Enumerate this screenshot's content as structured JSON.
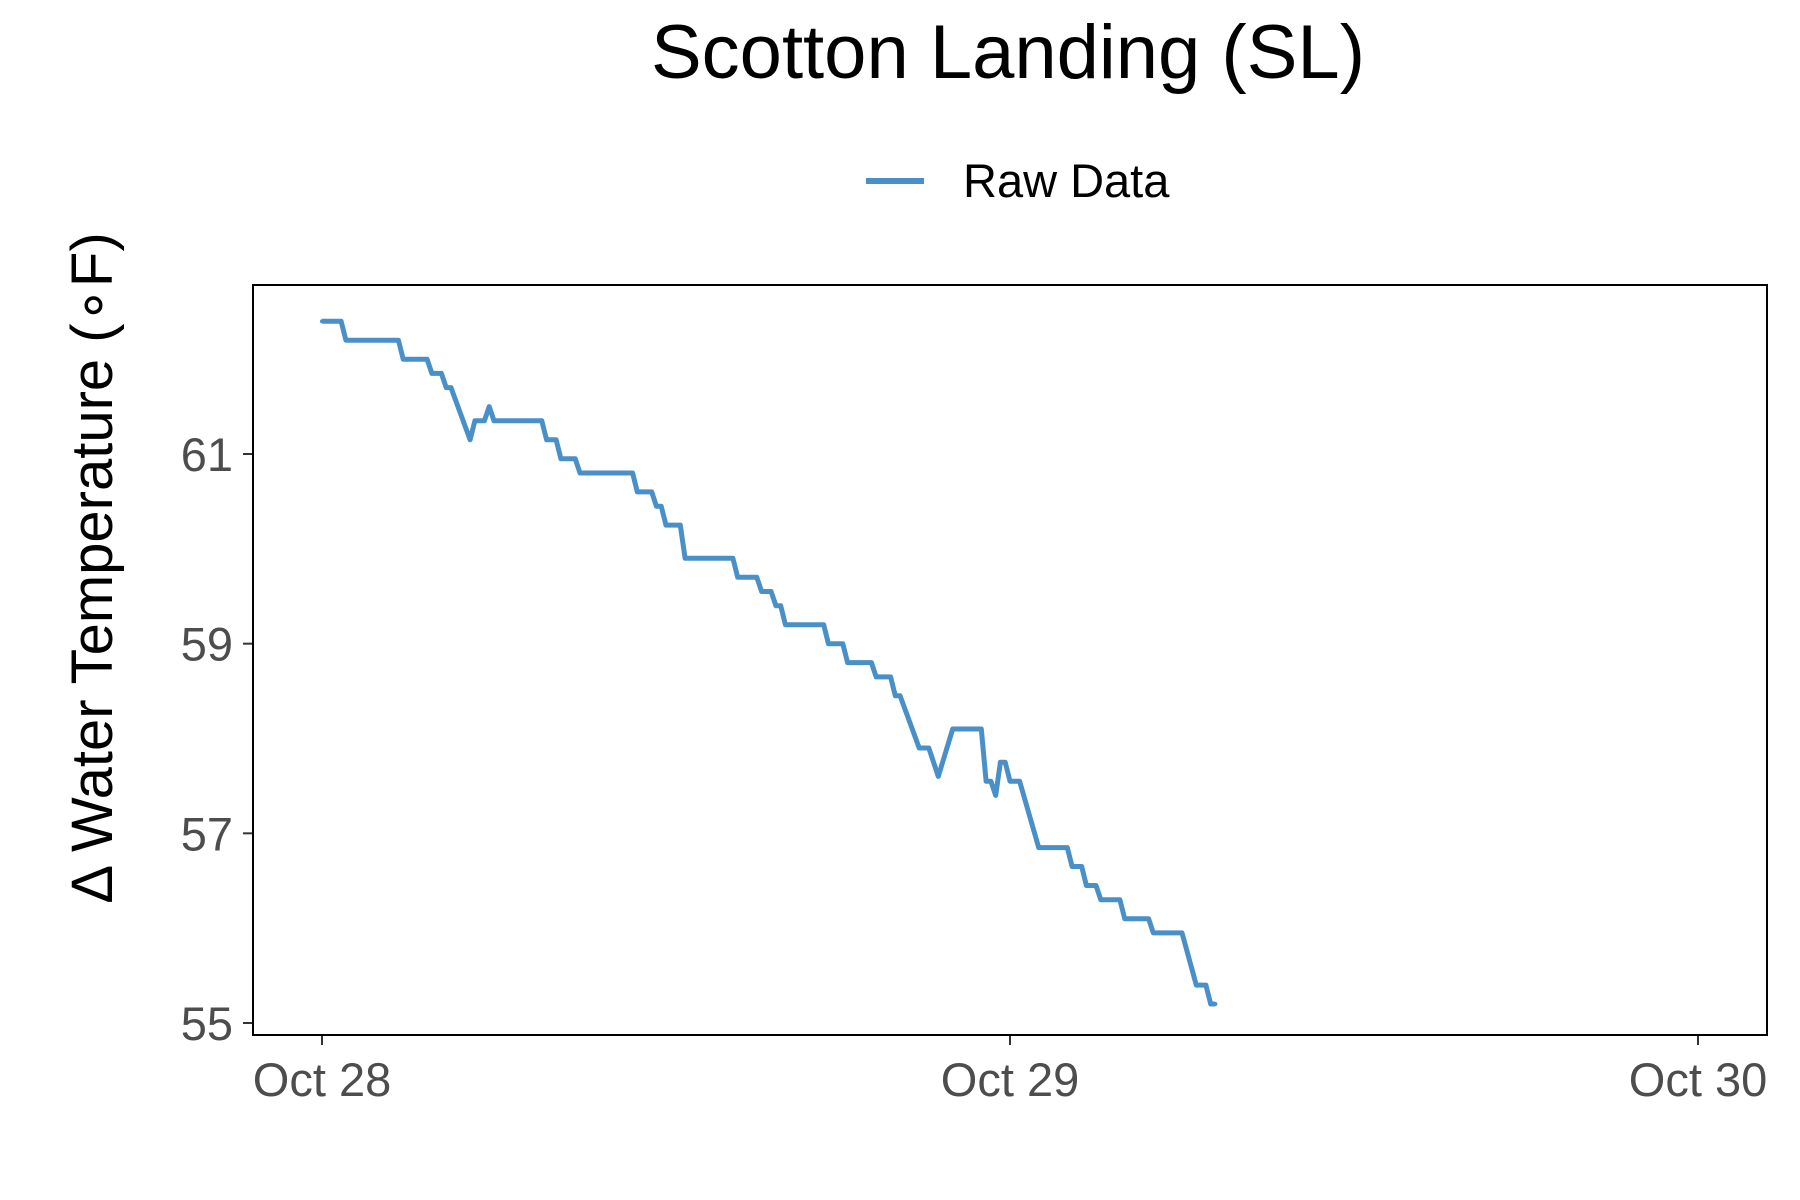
{
  "chart_data": {
    "type": "line",
    "title": "Scotton Landing (SL)",
    "xlabel": "",
    "ylabel": "Δ Water Temperature (∘F)",
    "x_ticks": [
      "Oct 28",
      "Oct 29",
      "Oct 30"
    ],
    "x_range": [
      "Oct 28",
      "Oct 30"
    ],
    "y_ticks": [
      55,
      57,
      59,
      61
    ],
    "ylim": [
      54.9,
      62.8
    ],
    "grid": false,
    "legend": {
      "position": "top",
      "entries": [
        "Raw Data"
      ]
    },
    "series": [
      {
        "name": "Raw Data",
        "color": "#4a90c8",
        "points": [
          [
            "Oct 28 00:00",
            62.4
          ],
          [
            "Oct 28 00:40",
            62.4
          ],
          [
            "Oct 28 00:50",
            62.2
          ],
          [
            "Oct 28 02:40",
            62.2
          ],
          [
            "Oct 28 02:50",
            62.0
          ],
          [
            "Oct 28 03:40",
            62.0
          ],
          [
            "Oct 28 03:50",
            61.85
          ],
          [
            "Oct 28 04:10",
            61.85
          ],
          [
            "Oct 28 04:20",
            61.7
          ],
          [
            "Oct 28 04:30",
            61.7
          ],
          [
            "Oct 28 05:10",
            61.15
          ],
          [
            "Oct 28 05:20",
            61.35
          ],
          [
            "Oct 28 05:40",
            61.35
          ],
          [
            "Oct 28 05:50",
            61.5
          ],
          [
            "Oct 28 06:00",
            61.35
          ],
          [
            "Oct 28 07:40",
            61.35
          ],
          [
            "Oct 28 07:50",
            61.15
          ],
          [
            "Oct 28 08:10",
            61.15
          ],
          [
            "Oct 28 08:20",
            60.95
          ],
          [
            "Oct 28 08:50",
            60.95
          ],
          [
            "Oct 28 09:00",
            60.8
          ],
          [
            "Oct 28 10:50",
            60.8
          ],
          [
            "Oct 28 11:00",
            60.6
          ],
          [
            "Oct 28 11:30",
            60.6
          ],
          [
            "Oct 28 11:40",
            60.45
          ],
          [
            "Oct 28 11:50",
            60.45
          ],
          [
            "Oct 28 12:00",
            60.25
          ],
          [
            "Oct 28 12:30",
            60.25
          ],
          [
            "Oct 28 12:40",
            59.9
          ],
          [
            "Oct 28 14:20",
            59.9
          ],
          [
            "Oct 28 14:30",
            59.7
          ],
          [
            "Oct 28 15:10",
            59.7
          ],
          [
            "Oct 28 15:20",
            59.55
          ],
          [
            "Oct 28 15:40",
            59.55
          ],
          [
            "Oct 28 15:50",
            59.4
          ],
          [
            "Oct 28 16:00",
            59.4
          ],
          [
            "Oct 28 16:10",
            59.2
          ],
          [
            "Oct 28 17:30",
            59.2
          ],
          [
            "Oct 28 17:40",
            59.0
          ],
          [
            "Oct 28 18:10",
            59.0
          ],
          [
            "Oct 28 18:20",
            58.8
          ],
          [
            "Oct 28 19:10",
            58.8
          ],
          [
            "Oct 28 19:20",
            58.65
          ],
          [
            "Oct 28 19:50",
            58.65
          ],
          [
            "Oct 28 20:00",
            58.45
          ],
          [
            "Oct 28 20:10",
            58.45
          ],
          [
            "Oct 28 20:50",
            57.9
          ],
          [
            "Oct 28 21:10",
            57.9
          ],
          [
            "Oct 28 21:30",
            57.6
          ],
          [
            "Oct 28 22:00",
            58.1
          ],
          [
            "Oct 28 23:00",
            58.1
          ],
          [
            "Oct 28 23:10",
            57.55
          ],
          [
            "Oct 28 23:20",
            57.55
          ],
          [
            "Oct 28 23:30",
            57.4
          ],
          [
            "Oct 28 23:40",
            57.75
          ],
          [
            "Oct 28 23:50",
            57.75
          ],
          [
            "Oct 29 00:00",
            57.55
          ],
          [
            "Oct 29 00:20",
            57.55
          ],
          [
            "Oct 29 01:00",
            56.85
          ],
          [
            "Oct 29 02:00",
            56.85
          ],
          [
            "Oct 29 02:10",
            56.65
          ],
          [
            "Oct 29 02:30",
            56.65
          ],
          [
            "Oct 29 02:40",
            56.45
          ],
          [
            "Oct 29 03:00",
            56.45
          ],
          [
            "Oct 29 03:10",
            56.3
          ],
          [
            "Oct 29 03:50",
            56.3
          ],
          [
            "Oct 29 04:00",
            56.1
          ],
          [
            "Oct 29 04:50",
            56.1
          ],
          [
            "Oct 29 05:00",
            55.95
          ],
          [
            "Oct 29 06:00",
            55.95
          ],
          [
            "Oct 29 06:30",
            55.4
          ],
          [
            "Oct 29 06:50",
            55.4
          ],
          [
            "Oct 29 07:00",
            55.2
          ],
          [
            "Oct 29 07:10",
            55.2
          ]
        ]
      }
    ]
  }
}
